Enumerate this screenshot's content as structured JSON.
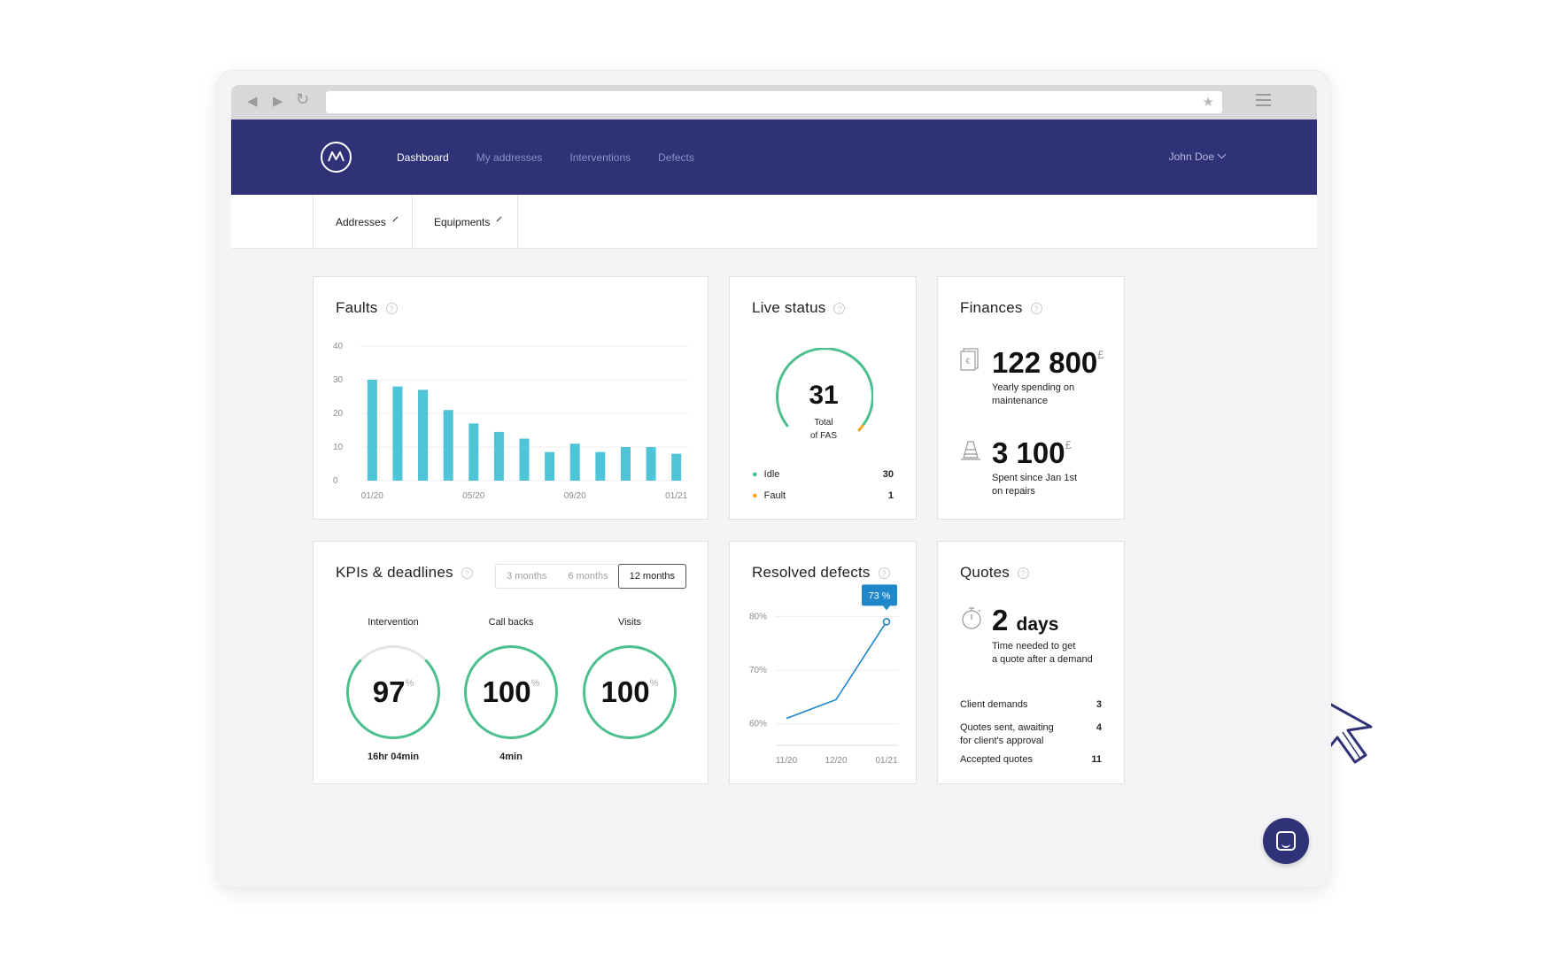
{
  "nav": {
    "items": [
      {
        "label": "Dashboard",
        "active": true
      },
      {
        "label": "My addresses"
      },
      {
        "label": "Interventions"
      },
      {
        "label": "Defects"
      }
    ],
    "user": "John Doe"
  },
  "filters": {
    "addresses": "Addresses",
    "equipments": "Equipments"
  },
  "faults": {
    "title": "Faults",
    "chart_data": {
      "type": "bar",
      "categories": [
        "01/20",
        "02/20",
        "03/20",
        "04/20",
        "05/20",
        "06/20",
        "07/20",
        "08/20",
        "09/20",
        "10/20",
        "11/20",
        "12/20",
        "01/21"
      ],
      "x_tick_labels": [
        "01/20",
        "05/20",
        "09/20",
        "01/21"
      ],
      "values": [
        30,
        28,
        27,
        21,
        17,
        14.5,
        12.5,
        8.5,
        11,
        8.5,
        10,
        10,
        8
      ],
      "y_ticks": [
        "0",
        "10",
        "20",
        "30",
        "40"
      ],
      "ylim": [
        0,
        40
      ],
      "color": "#4ec5d6",
      "grid": true
    }
  },
  "live_status": {
    "title": "Live status",
    "total": "31",
    "total_label_1": "Total",
    "total_label_2": "of FAS",
    "idle_label": "Idle",
    "idle_value": "30",
    "fault_label": "Fault",
    "fault_value": "1",
    "idle_color": "#4cbf8e",
    "fault_color": "#f5a623"
  },
  "finances": {
    "title": "Finances",
    "yearly_value": "122 800",
    "currency": "£",
    "yearly_label_1": "Yearly spending on",
    "yearly_label_2": "maintenance",
    "repairs_value": "3 100",
    "repairs_label_1": "Spent since Jan 1st",
    "repairs_label_2": "on repairs"
  },
  "kpis": {
    "title": "KPIs & deadlines",
    "periods": [
      "3 months",
      "6 months",
      "12 months"
    ],
    "selected_period": "12 months",
    "items": [
      {
        "label": "Intervention",
        "value": "97",
        "unit": "%",
        "sub": "16hr 04min",
        "progress": 0.97
      },
      {
        "label": "Call backs",
        "value": "100",
        "unit": "%",
        "sub": "4min",
        "progress": 1.0
      },
      {
        "label": "Visits",
        "value": "100",
        "unit": "%",
        "sub": "",
        "progress": 1.0
      }
    ]
  },
  "resolved": {
    "title": "Resolved defects",
    "tooltip": "73 %",
    "chart_data": {
      "type": "line",
      "x": [
        "11/20",
        "12/20",
        "01/21"
      ],
      "values": [
        61,
        64.5,
        79
      ],
      "y_ticks": [
        "60%",
        "70%",
        "80%"
      ],
      "ylim": [
        56,
        84
      ],
      "color": "#1f87c9"
    }
  },
  "quotes": {
    "title": "Quotes",
    "value": "2",
    "unit": "days",
    "label_1": "Time needed to get",
    "label_2": "a quote after a demand",
    "rows": [
      {
        "label": "Client demands",
        "value": "3"
      },
      {
        "label": "Quotes sent, awaiting",
        "label2": "for client's approval",
        "value": "4"
      },
      {
        "label": "Accepted quotes",
        "value": "11"
      }
    ]
  }
}
